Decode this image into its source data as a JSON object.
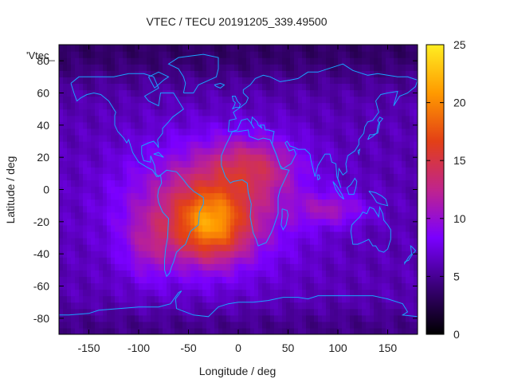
{
  "chart_data": {
    "type": "heatmap",
    "title": "VTEC / TECU 20191205_339.49500",
    "xlabel": "Longitude / deg",
    "ylabel": "Latitude / deg",
    "xlim": [
      -180,
      180
    ],
    "ylim": [
      -90,
      90
    ],
    "x_ticks": [
      -150,
      -100,
      -50,
      0,
      50,
      100,
      150
    ],
    "y_ticks": [
      -80,
      -60,
      -40,
      -20,
      0,
      20,
      40,
      60,
      80
    ],
    "colorbar": {
      "range": [
        0,
        25
      ],
      "ticks": [
        0,
        5,
        10,
        15,
        20,
        25
      ],
      "stops": [
        "#000000",
        "#3a0078",
        "#7a00ff",
        "#c0248c",
        "#e34016",
        "#ff9a00",
        "#ffee22"
      ]
    },
    "legend_key": "'Vtec_",
    "field": {
      "background_tecu": 6,
      "polar_tecu": 4,
      "peak": {
        "lon": -28,
        "lat": -20,
        "tecu": 24
      },
      "anomaly_lon_range": [
        -140,
        140
      ],
      "anomaly_lat_range": [
        -60,
        35
      ],
      "description_values": [
        {
          "lon": -28,
          "lat": -20,
          "tecu": 24
        },
        {
          "lon": 15,
          "lat": 15,
          "tecu": 16
        },
        {
          "lon": -90,
          "lat": -30,
          "tecu": 13
        },
        {
          "lon": 100,
          "lat": -10,
          "tecu": 12
        },
        {
          "lon": 0,
          "lat": 60,
          "tecu": 5
        },
        {
          "lon": 0,
          "lat": -80,
          "tecu": 5
        }
      ]
    },
    "grid": false
  }
}
